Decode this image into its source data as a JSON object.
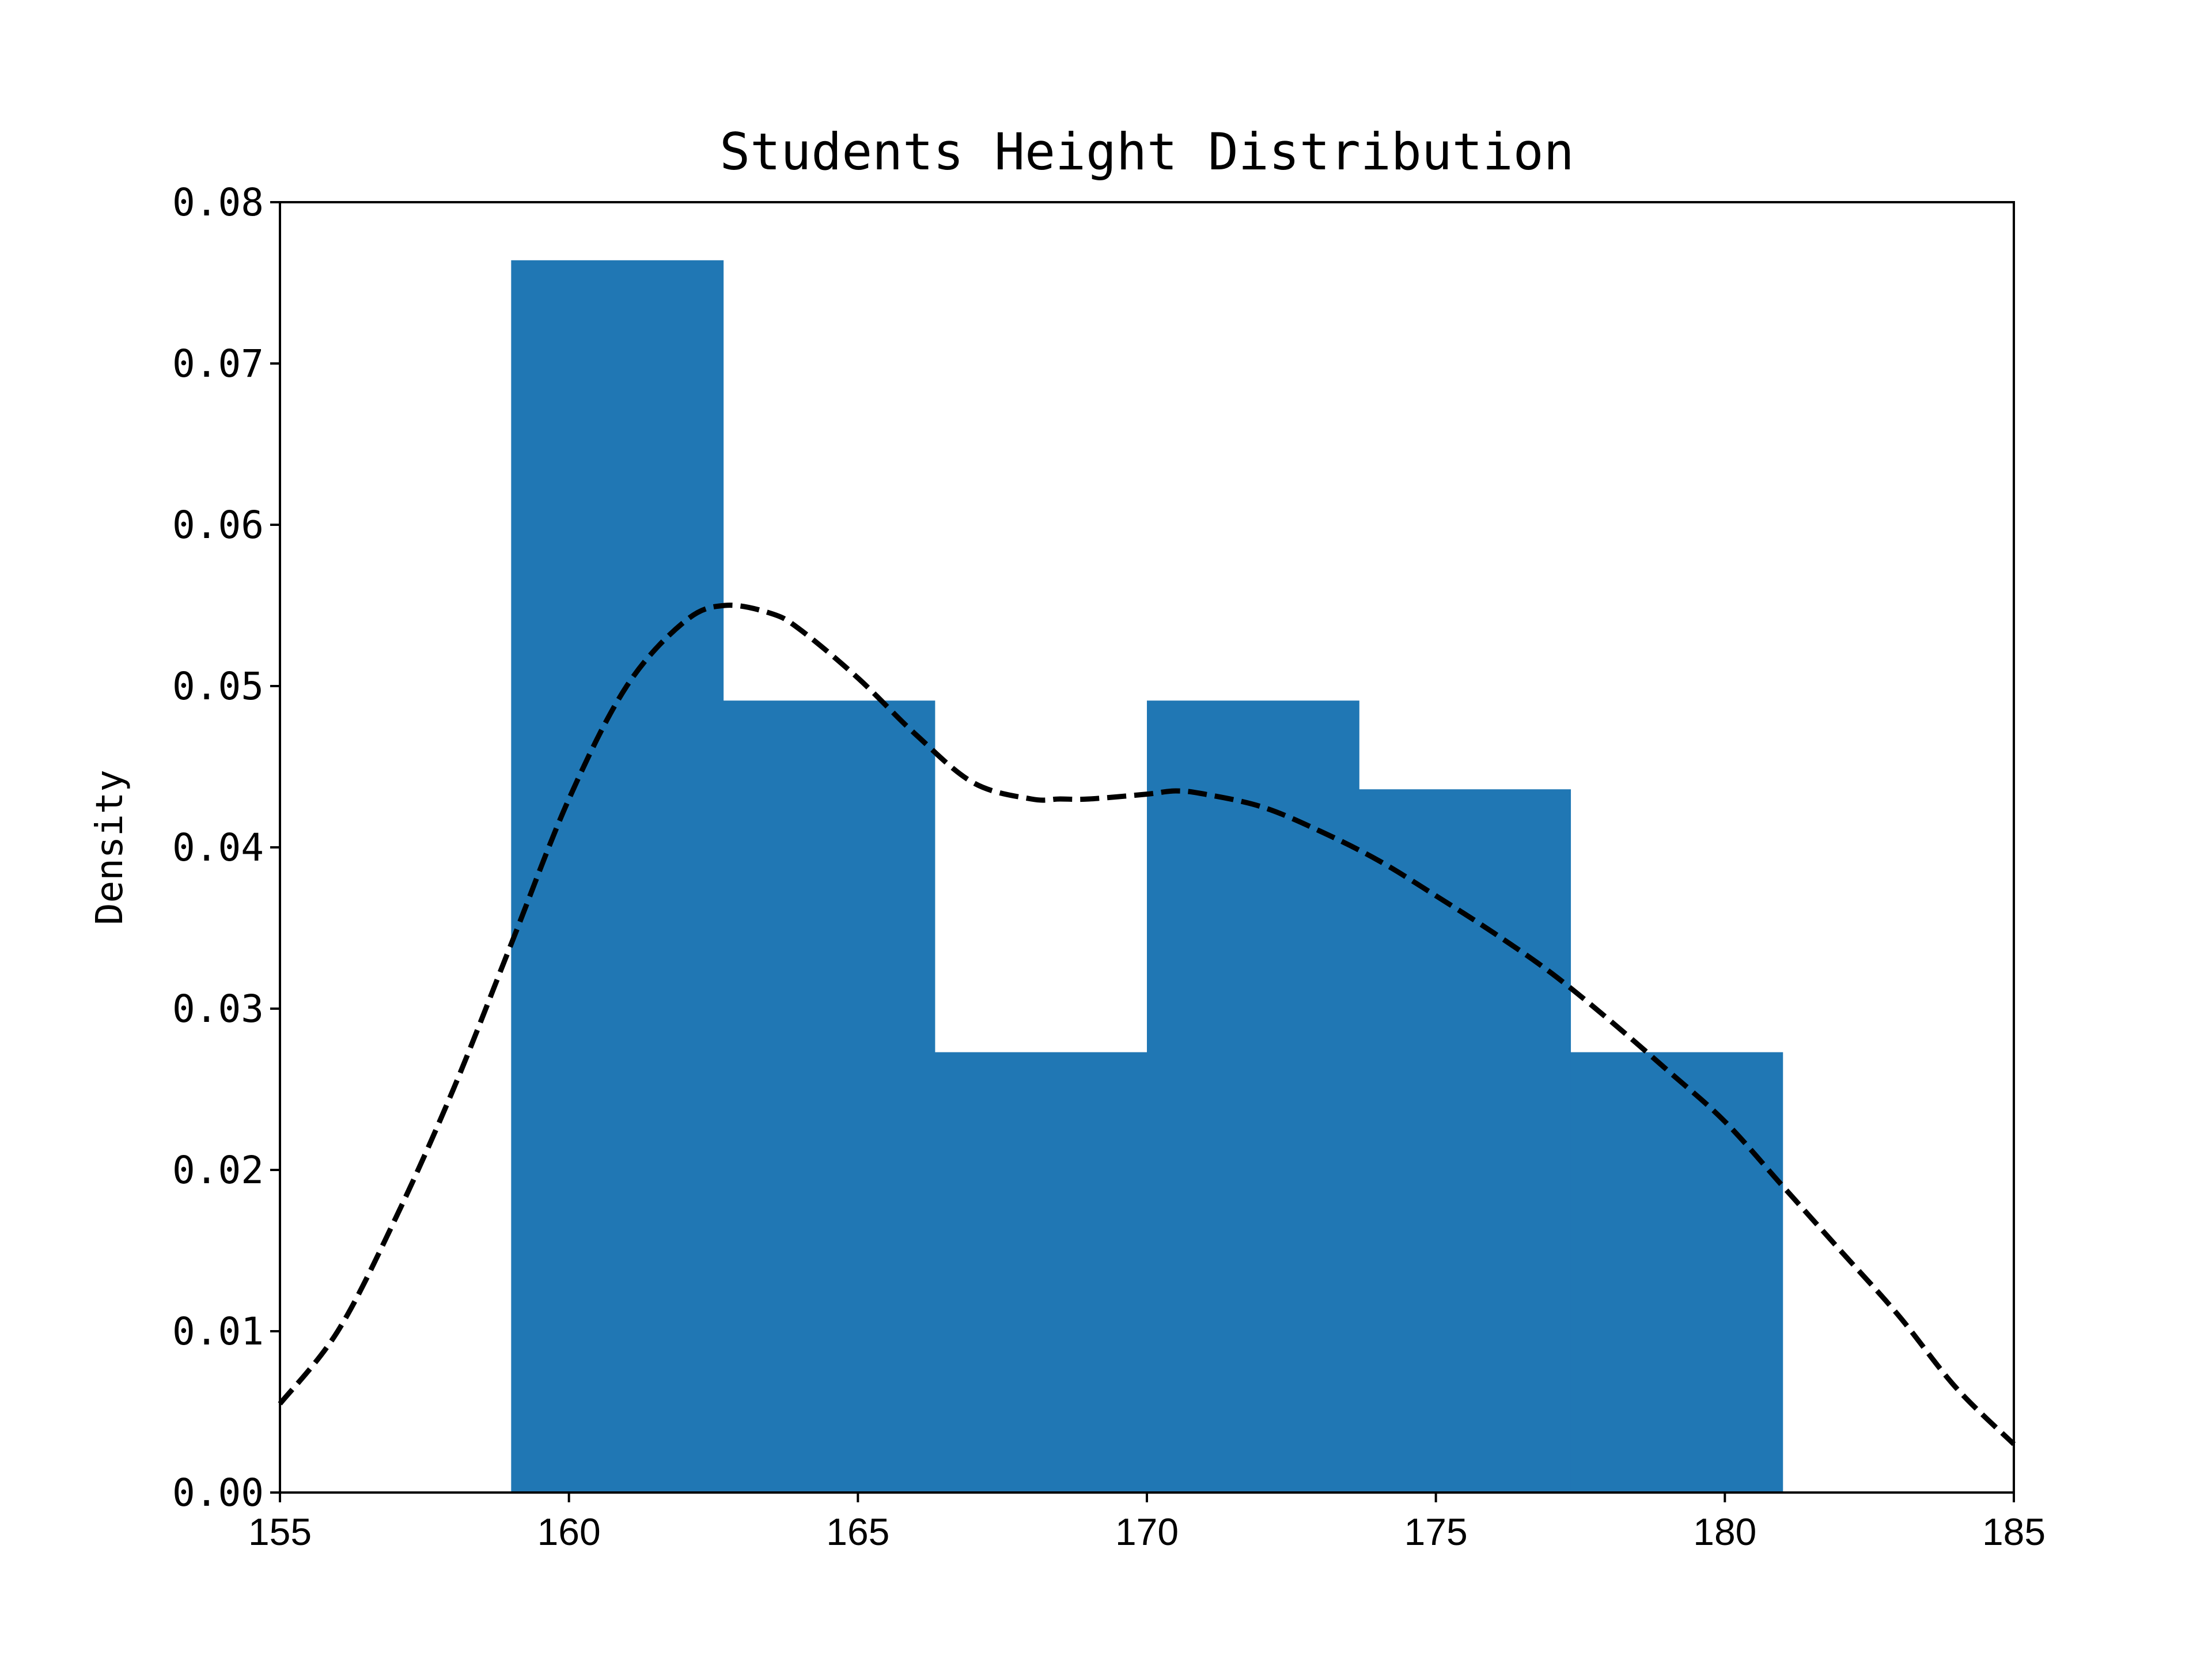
{
  "chart_data": {
    "type": "bar",
    "title": "Students Height Distribution",
    "xlabel": "",
    "ylabel": "Density",
    "xlim": [
      155,
      185
    ],
    "ylim": [
      0,
      0.08
    ],
    "x_ticks": [
      "155",
      "160",
      "165",
      "170",
      "175",
      "180",
      "185"
    ],
    "y_ticks": [
      "0.00",
      "0.01",
      "0.02",
      "0.03",
      "0.04",
      "0.05",
      "0.06",
      "0.07",
      "0.08"
    ],
    "bar_color": "#2077b4",
    "grid": false,
    "legend": "none",
    "histogram": {
      "bin_edges": [
        159.0,
        162.67,
        166.33,
        170.0,
        173.67,
        177.33,
        181.0
      ],
      "values": [
        0.0764,
        0.0491,
        0.0273,
        0.0491,
        0.0436,
        0.0273
      ]
    },
    "density_curve": {
      "style": "dashed",
      "color": "#000000",
      "x": [
        155,
        156,
        157,
        158,
        159,
        160,
        161,
        162,
        162.7,
        163.5,
        164,
        165,
        166,
        167,
        168,
        168.5,
        169,
        170,
        170.5,
        171,
        172,
        173,
        174,
        175,
        176,
        177,
        178,
        179,
        180,
        181,
        182,
        183,
        184,
        185
      ],
      "y": [
        0.0055,
        0.01,
        0.017,
        0.025,
        0.034,
        0.043,
        0.05,
        0.054,
        0.055,
        0.0545,
        0.0535,
        0.0505,
        0.047,
        0.044,
        0.043,
        0.043,
        0.043,
        0.0433,
        0.0435,
        0.0433,
        0.0425,
        0.041,
        0.0392,
        0.037,
        0.0347,
        0.0322,
        0.0293,
        0.0262,
        0.023,
        0.019,
        0.015,
        0.011,
        0.0065,
        0.003
      ]
    }
  }
}
